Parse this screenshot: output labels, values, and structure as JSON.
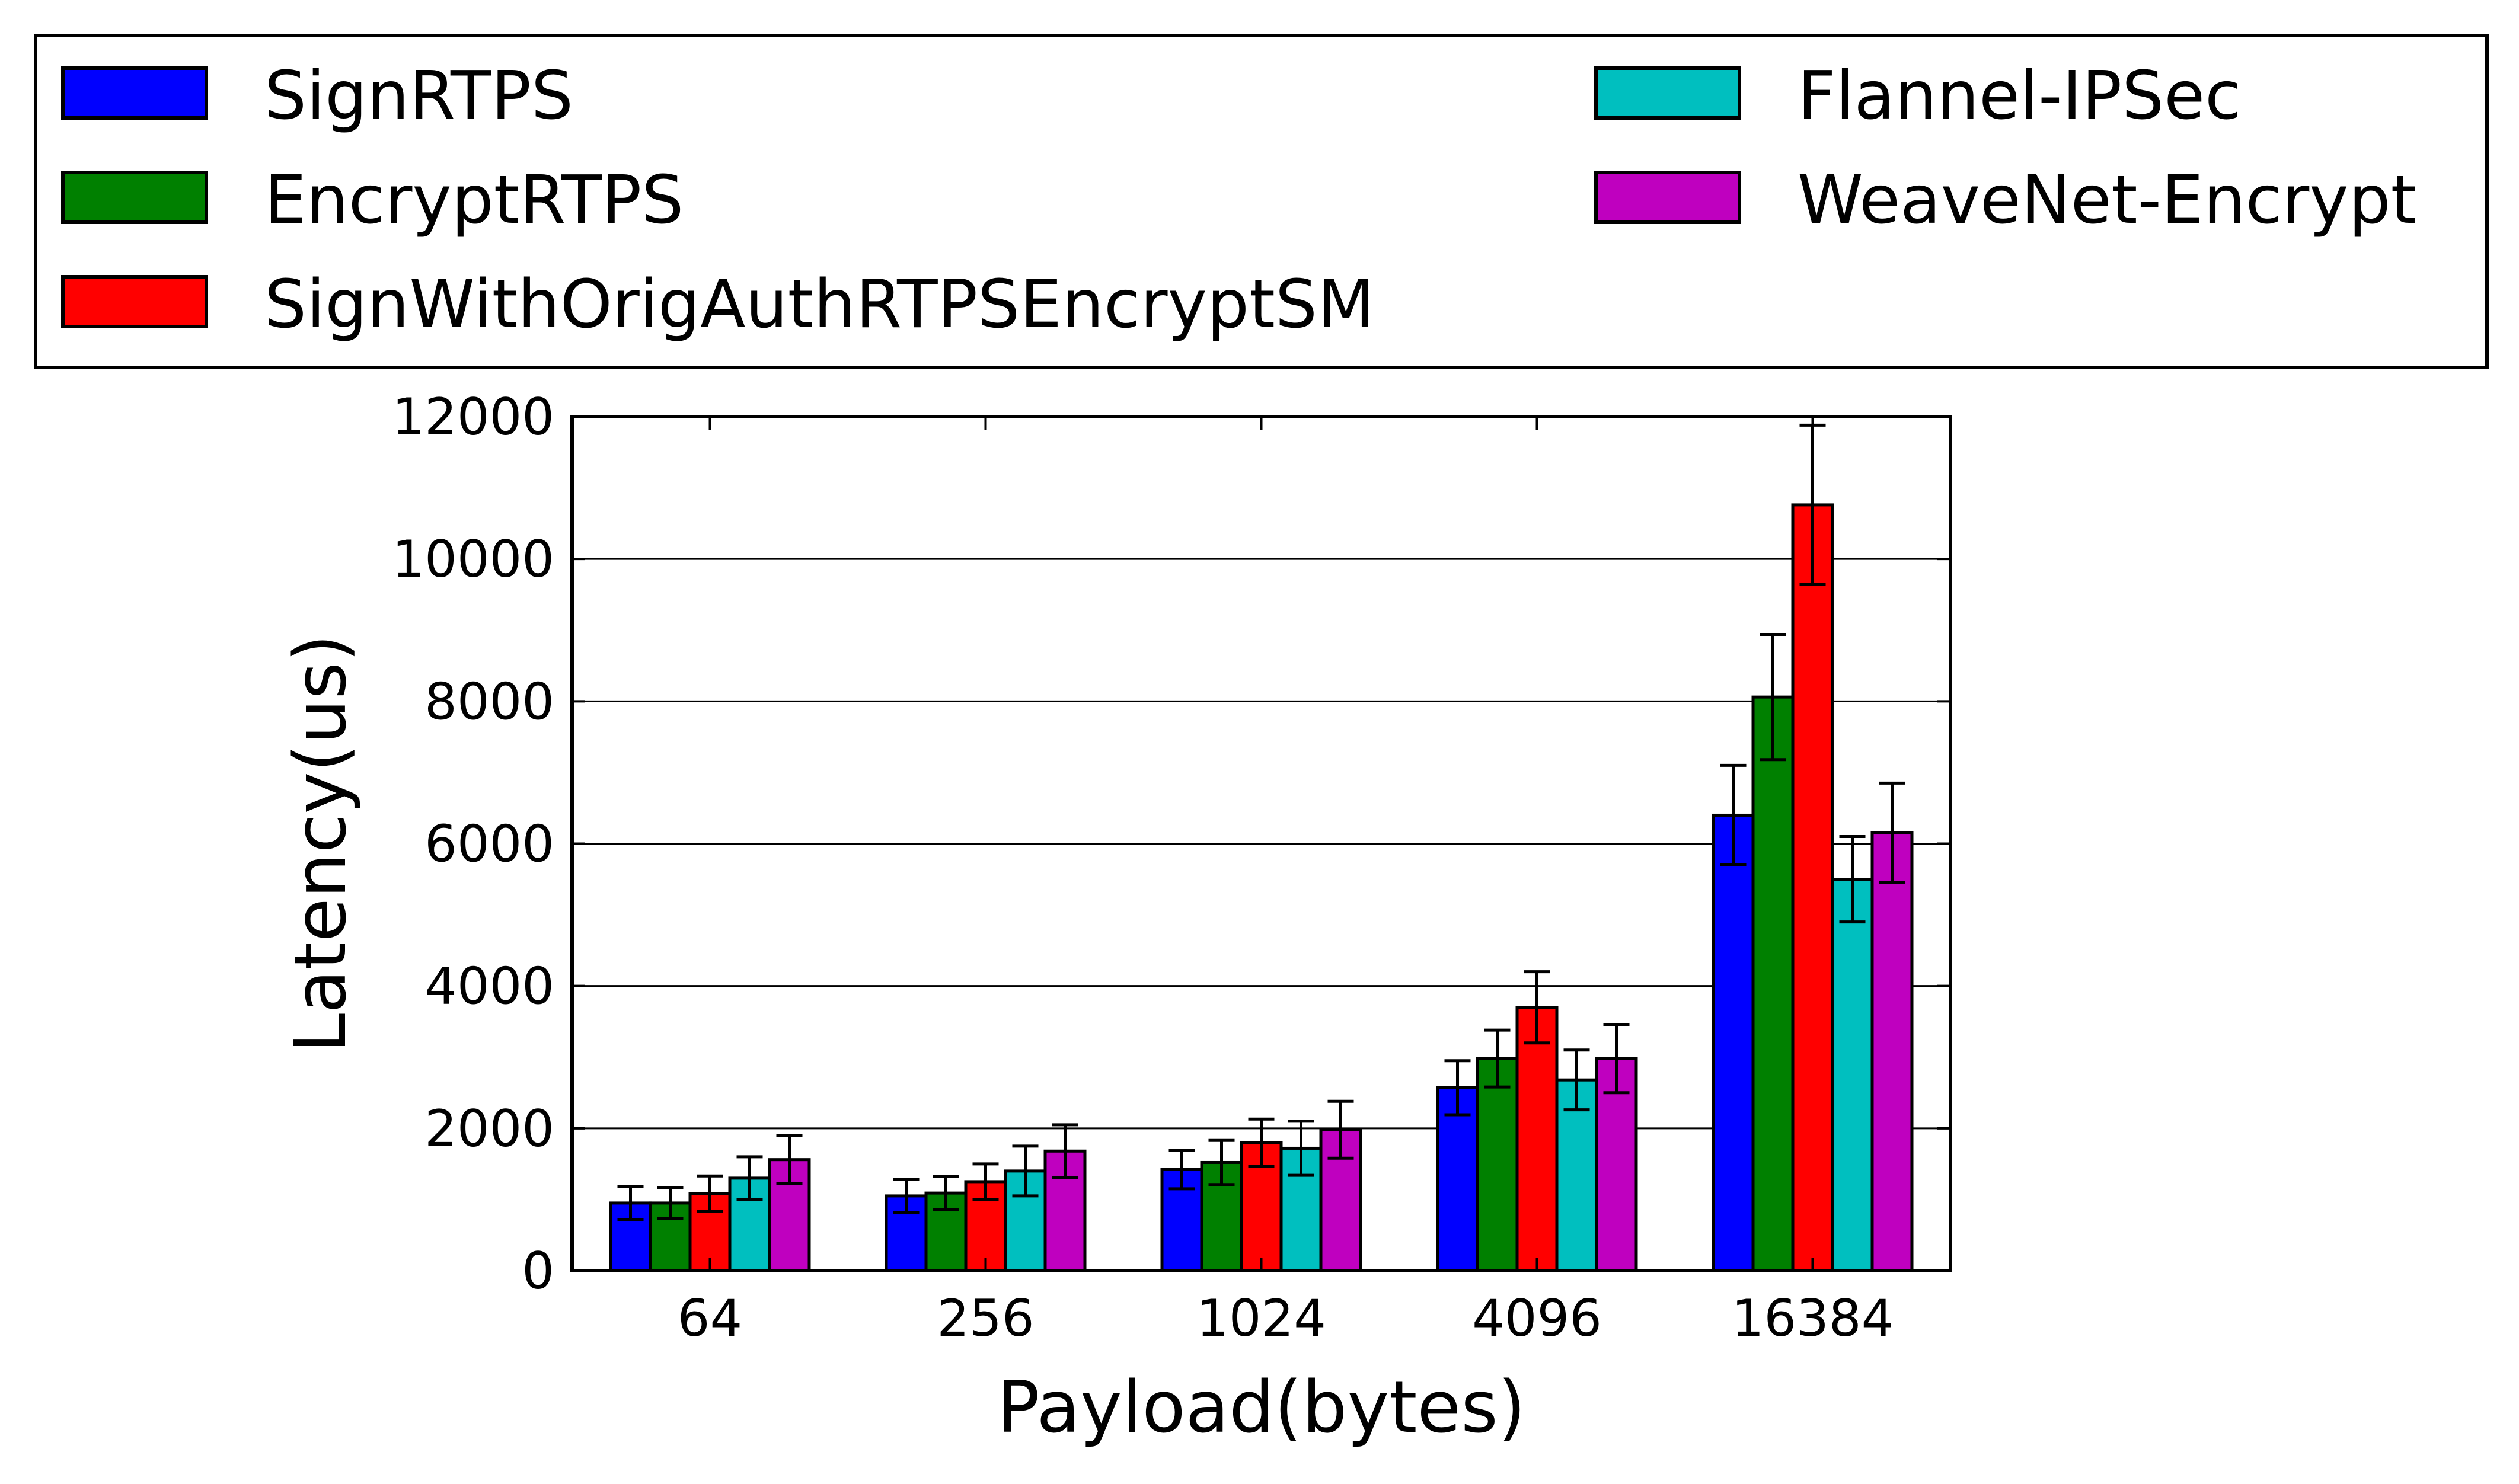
{
  "chart_data": {
    "type": "bar",
    "xlabel": "Payload(bytes)",
    "ylabel": "Latency(us)",
    "ylim": [
      0,
      12000
    ],
    "yticks": [
      0,
      2000,
      4000,
      6000,
      8000,
      10000,
      12000
    ],
    "grid": "horizontal",
    "legend": "top, above plot, two columns",
    "categories": [
      "64",
      "256",
      "1024",
      "4096",
      "16384"
    ],
    "series": [
      {
        "name": "SignRTPS",
        "color": "#0000ff",
        "values": [
          950,
          1050,
          1420,
          2570,
          6400
        ],
        "errors": [
          230,
          230,
          270,
          380,
          700
        ]
      },
      {
        "name": "EncryptRTPS",
        "color": "#008000",
        "values": [
          950,
          1090,
          1520,
          2980,
          8060
        ],
        "errors": [
          220,
          230,
          310,
          400,
          880
        ]
      },
      {
        "name": "SignWithOrigAuthRTPSEncryptSM",
        "color": "#ff0000",
        "values": [
          1080,
          1250,
          1800,
          3700,
          10760
        ],
        "errors": [
          250,
          250,
          330,
          500,
          1120
        ]
      },
      {
        "name": "Flannel-IPSec",
        "color": "#00bfbf",
        "values": [
          1300,
          1400,
          1720,
          2680,
          5500
        ],
        "errors": [
          300,
          350,
          380,
          420,
          600
        ]
      },
      {
        "name": "WeaveNet-Encrypt",
        "color": "#bf00bf",
        "values": [
          1560,
          1680,
          1980,
          2980,
          6150
        ],
        "errors": [
          340,
          370,
          400,
          480,
          700
        ]
      }
    ]
  }
}
